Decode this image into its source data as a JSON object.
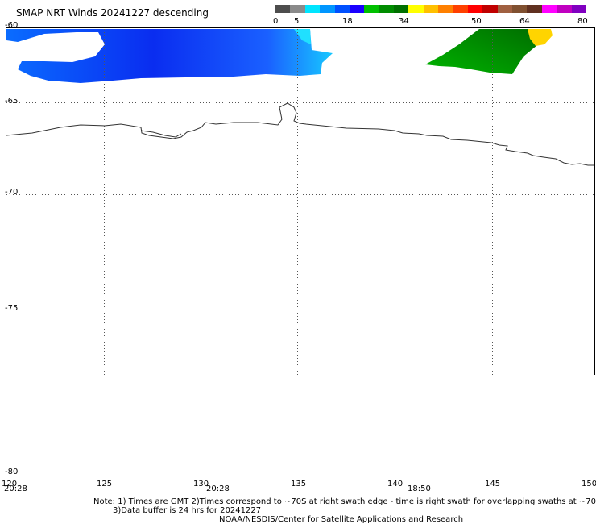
{
  "title": "SMAP NRT Winds  20241227 descending",
  "colorbar": {
    "ticks": [
      "0",
      "5",
      "18",
      "34",
      "50",
      "64",
      "80"
    ],
    "colors": [
      "#4d4d4d",
      "#8a8a8a",
      "#00e5ff",
      "#0096ff",
      "#0050ff",
      "#1a00ff",
      "#00c000",
      "#008c00",
      "#007000",
      "#ffff00",
      "#ffc000",
      "#ff8000",
      "#ff4000",
      "#ff0000",
      "#c00000",
      "#a06040",
      "#805030",
      "#603020",
      "#ff00ff",
      "#c000c0",
      "#8000c0"
    ]
  },
  "map": {
    "lat_labels": [
      "-60",
      "-65",
      "-70",
      "-75",
      "-80"
    ],
    "lon_labels": [
      "120",
      "125",
      "130",
      "135",
      "140",
      "145",
      "150"
    ],
    "time_labels": [
      "20:28",
      "20:28",
      "18:50"
    ],
    "coastline_color": "#333333",
    "grid": "dotted"
  },
  "notes": {
    "line1": "Note: 1) Times are GMT 2)Times correspond to ~70S at right swath edge - time is right swath for overlapping swaths at ~70S",
    "line2": "3)Data buffer is 24 hrs for 20241227",
    "line3": "NOAA/NESDIS/Center for Satellite Applications and Research"
  }
}
